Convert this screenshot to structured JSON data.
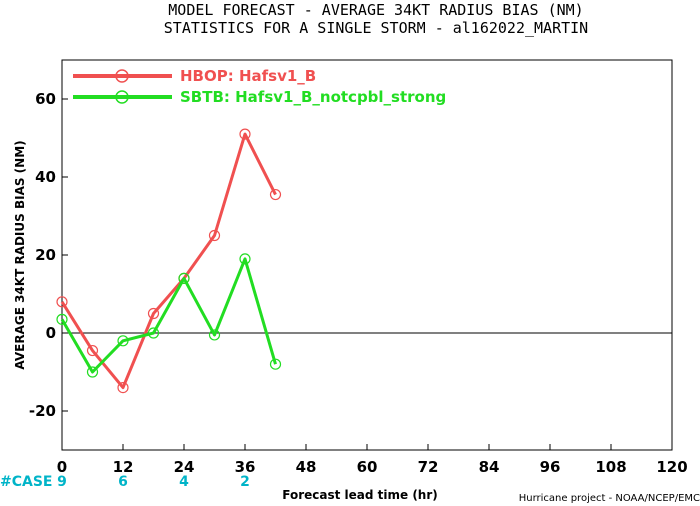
{
  "chart_data": {
    "type": "line",
    "title_line1": "MODEL FORECAST - AVERAGE 34KT RADIUS BIAS (NM)",
    "title_line2": "STATISTICS FOR A SINGLE STORM - al162022_MARTIN",
    "xlabel": "Forecast lead time (hr)",
    "ylabel": "AVERAGE 34KT RADIUS BIAS (NM)",
    "xlim": [
      0,
      120
    ],
    "ylim": [
      -30,
      70
    ],
    "x_ticks": [
      0,
      12,
      24,
      36,
      48,
      60,
      72,
      84,
      96,
      108,
      120
    ],
    "y_ticks": [
      -20,
      0,
      20,
      40,
      60
    ],
    "zero_line": true,
    "legend_position": "top-left",
    "series": [
      {
        "name": "HBOP: Hafsv1_B",
        "color": "#f05050",
        "x": [
          0,
          6,
          12,
          18,
          24,
          30,
          36,
          42
        ],
        "y": [
          8,
          -4.5,
          -14,
          5,
          14,
          25,
          51,
          35.5
        ]
      },
      {
        "name": "SBTB: Hafsv1_B_notcpbl_strong",
        "color": "#22dd22",
        "x": [
          0,
          6,
          12,
          18,
          24,
          30,
          36,
          42
        ],
        "y": [
          3.5,
          -10,
          -2,
          0,
          14,
          -0.5,
          19,
          -8
        ]
      }
    ],
    "cases": {
      "label": "#CASE",
      "color": "#00b4c8",
      "x": [
        0,
        12,
        24,
        36
      ],
      "values": [
        "9",
        "6",
        "4",
        "2"
      ]
    },
    "credit": "Hurricane project - NOAA/NCEP/EMC"
  }
}
